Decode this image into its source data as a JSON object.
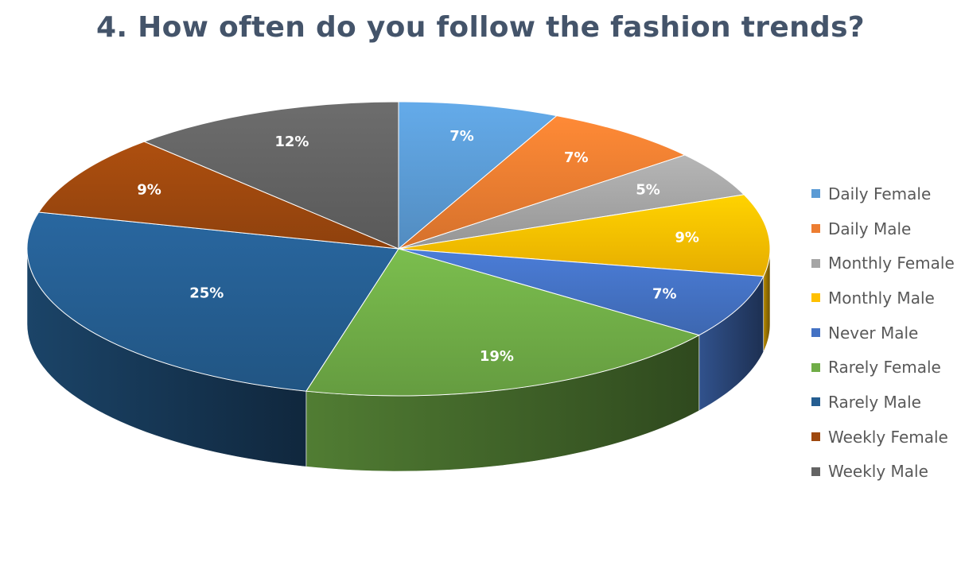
{
  "chart_data": {
    "type": "pie",
    "title": "4. How often do you follow the fashion trends?",
    "categories": [
      "Daily Female",
      "Daily Male",
      "Monthly Female",
      "Monthly Male",
      "Never Male",
      "Rarely Female",
      "Rarely Male",
      "Weekly Female",
      "Weekly Male"
    ],
    "values": [
      7,
      7,
      5,
      9,
      7,
      19,
      25,
      9,
      12
    ],
    "labels": [
      "7%",
      "7%",
      "5%",
      "9%",
      "7%",
      "19%",
      "25%",
      "9%",
      "12%"
    ],
    "colors": [
      "#5b9bd5",
      "#ed7d31",
      "#a5a5a5",
      "#ffc000",
      "#4472c4",
      "#70ad47",
      "#255e91",
      "#9e480e",
      "#636363"
    ],
    "legend_position": "right",
    "style": "3d"
  }
}
